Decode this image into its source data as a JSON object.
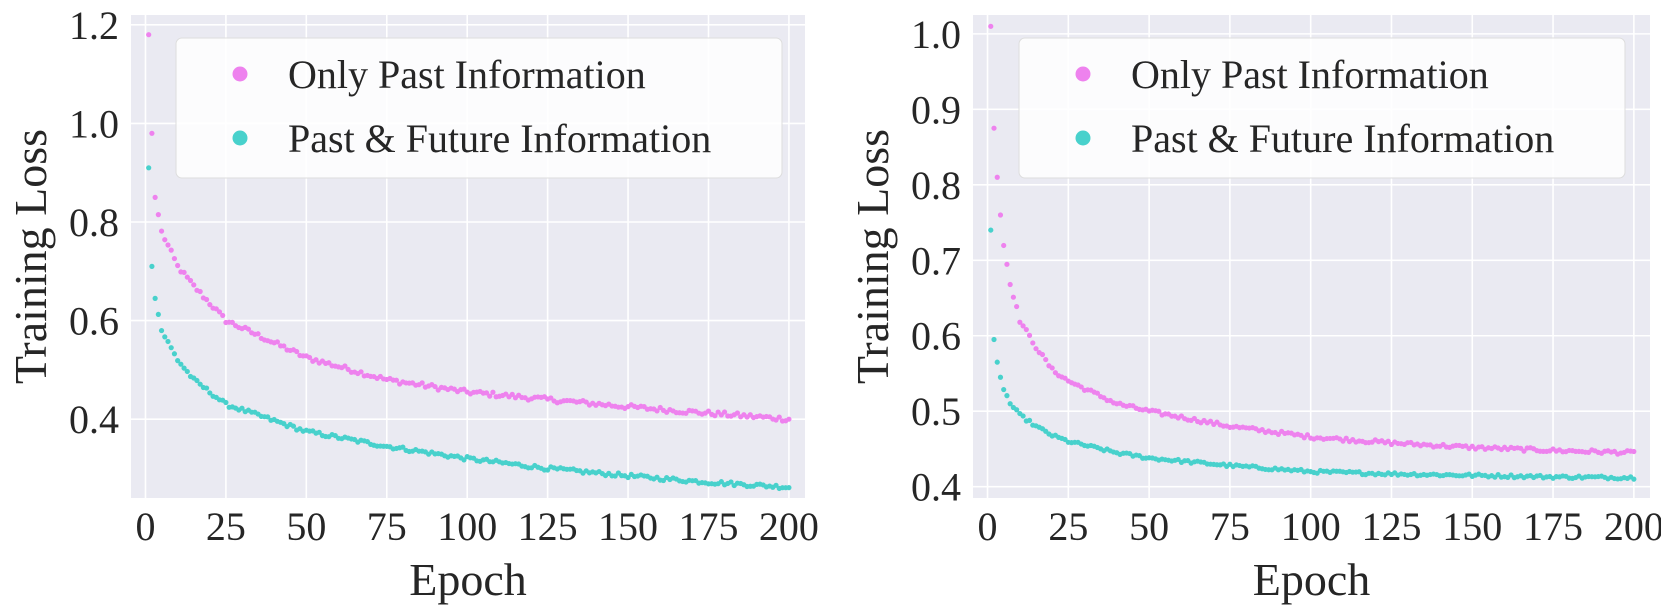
{
  "colors": {
    "background": "#eaeaf2",
    "grid": "#ffffff",
    "only_past": "#ee82ee",
    "past_future": "#48d1cc",
    "legend_bg": "#ffffff"
  },
  "chart_data": [
    {
      "type": "scatter",
      "xlabel": "Epoch",
      "ylabel": "Training Loss",
      "xlim": [
        -4.5,
        205
      ],
      "ylim": [
        0.24,
        1.22
      ],
      "xticks": [
        0,
        25,
        50,
        75,
        100,
        125,
        150,
        175,
        200
      ],
      "xtick_labels": [
        "0",
        "25",
        "50",
        "75",
        "100",
        "125",
        "150",
        "175",
        "200"
      ],
      "yticks": [
        0.4,
        0.6,
        0.8,
        1.0,
        1.2
      ],
      "ytick_labels": [
        "0.4",
        "0.6",
        "0.8",
        "1.0",
        "1.2"
      ],
      "grid": true,
      "legend": {
        "position": "top-right",
        "entries": [
          "Only Past Information",
          "Past & Future Information"
        ]
      },
      "series": [
        {
          "name": "Only Past Information",
          "color_key": "only_past",
          "x_start": 1,
          "x_end": 200,
          "anchors": [
            [
              1,
              1.18
            ],
            [
              2,
              0.98
            ],
            [
              3,
              0.85
            ],
            [
              5,
              0.78
            ],
            [
              10,
              0.71
            ],
            [
              15,
              0.67
            ],
            [
              25,
              0.6
            ],
            [
              50,
              0.525
            ],
            [
              75,
              0.48
            ],
            [
              100,
              0.455
            ],
            [
              125,
              0.44
            ],
            [
              150,
              0.425
            ],
            [
              175,
              0.412
            ],
            [
              200,
              0.4
            ]
          ],
          "noise": 0.005
        },
        {
          "name": "Past & Future Information",
          "color_key": "past_future",
          "x_start": 1,
          "x_end": 200,
          "anchors": [
            [
              1,
              0.91
            ],
            [
              2,
              0.71
            ],
            [
              3,
              0.645
            ],
            [
              5,
              0.58
            ],
            [
              10,
              0.52
            ],
            [
              15,
              0.48
            ],
            [
              25,
              0.43
            ],
            [
              50,
              0.375
            ],
            [
              75,
              0.345
            ],
            [
              100,
              0.32
            ],
            [
              125,
              0.3
            ],
            [
              150,
              0.285
            ],
            [
              175,
              0.272
            ],
            [
              200,
              0.262
            ]
          ],
          "noise": 0.004
        }
      ]
    },
    {
      "type": "scatter",
      "xlabel": "Epoch",
      "ylabel": "Training Loss",
      "xlim": [
        -4.5,
        205
      ],
      "ylim": [
        0.385,
        1.025
      ],
      "xticks": [
        0,
        25,
        50,
        75,
        100,
        125,
        150,
        175,
        200
      ],
      "xtick_labels": [
        "0",
        "25",
        "50",
        "75",
        "100",
        "125",
        "150",
        "175",
        "200"
      ],
      "yticks": [
        0.4,
        0.5,
        0.6,
        0.7,
        0.8,
        0.9,
        1.0
      ],
      "ytick_labels": [
        "0.4",
        "0.5",
        "0.6",
        "0.7",
        "0.8",
        "0.9",
        "1.0"
      ],
      "grid": true,
      "legend": {
        "position": "top-right",
        "entries": [
          "Only Past Information",
          "Past & Future Information"
        ]
      },
      "series": [
        {
          "name": "Only Past Information",
          "color_key": "only_past",
          "x_start": 1,
          "x_end": 200,
          "anchors": [
            [
              1,
              1.01
            ],
            [
              2,
              0.875
            ],
            [
              3,
              0.81
            ],
            [
              4,
              0.76
            ],
            [
              5,
              0.72
            ],
            [
              7,
              0.67
            ],
            [
              10,
              0.62
            ],
            [
              15,
              0.585
            ],
            [
              20,
              0.555
            ],
            [
              25,
              0.54
            ],
            [
              40,
              0.51
            ],
            [
              50,
              0.5
            ],
            [
              75,
              0.48
            ],
            [
              100,
              0.466
            ],
            [
              125,
              0.458
            ],
            [
              150,
              0.452
            ],
            [
              175,
              0.448
            ],
            [
              200,
              0.445
            ]
          ],
          "noise": 0.0025
        },
        {
          "name": "Past & Future Information",
          "color_key": "past_future",
          "x_start": 1,
          "x_end": 200,
          "anchors": [
            [
              1,
              0.74
            ],
            [
              2,
              0.595
            ],
            [
              3,
              0.565
            ],
            [
              4,
              0.545
            ],
            [
              5,
              0.53
            ],
            [
              7,
              0.51
            ],
            [
              10,
              0.495
            ],
            [
              15,
              0.48
            ],
            [
              20,
              0.468
            ],
            [
              25,
              0.46
            ],
            [
              40,
              0.445
            ],
            [
              50,
              0.438
            ],
            [
              75,
              0.428
            ],
            [
              100,
              0.42
            ],
            [
              125,
              0.417
            ],
            [
              150,
              0.415
            ],
            [
              175,
              0.413
            ],
            [
              200,
              0.412
            ]
          ],
          "noise": 0.002
        }
      ]
    }
  ]
}
